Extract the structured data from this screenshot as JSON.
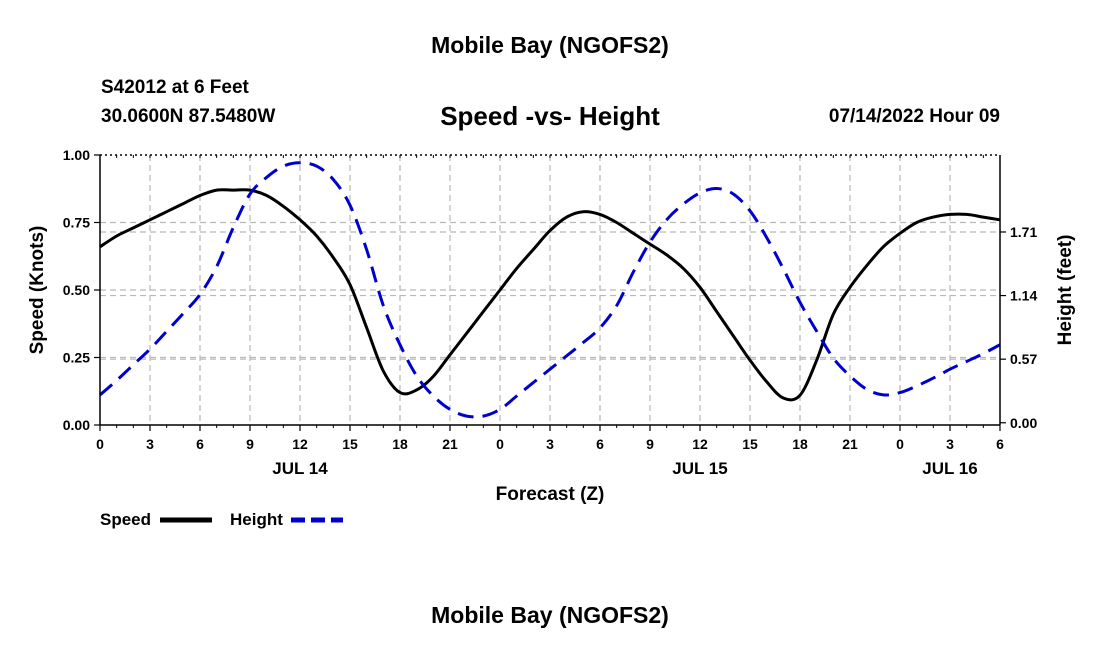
{
  "header": {
    "title": "Mobile Bay (NGOFS2)",
    "station": "S42012 at 6 Feet",
    "coords": "30.0600N  87.5480W",
    "subtitle": "Speed -vs- Height",
    "timestamp": "07/14/2022 Hour 09"
  },
  "footer": {
    "title": "Mobile Bay (NGOFS2)"
  },
  "chart_data": {
    "type": "line",
    "xlabel": "Forecast (Z)",
    "ylabel": "Speed (Knots)",
    "y2label": "Height (feet)",
    "x_range": [
      0,
      54
    ],
    "ylim": [
      0,
      1.0
    ],
    "y2lim": [
      -0.02,
      2.4
    ],
    "grid": true,
    "legend_position": "bottom-left",
    "x_tick_labels": [
      "0",
      "3",
      "6",
      "9",
      "12",
      "15",
      "18",
      "21",
      "0",
      "3",
      "6",
      "9",
      "12",
      "15",
      "18",
      "21",
      "0",
      "3",
      "6"
    ],
    "y_ticks": [
      "0.00",
      "0.25",
      "0.50",
      "0.75",
      "1.00"
    ],
    "y2_ticks": [
      "0.00",
      "0.57",
      "1.14",
      "1.71"
    ],
    "date_labels": [
      {
        "label": "JUL 14",
        "hour": 12
      },
      {
        "label": "JUL 15",
        "hour": 36
      },
      {
        "label": "JUL 16",
        "hour": 51
      }
    ],
    "series": [
      {
        "name": "Speed",
        "axis": "left",
        "color": "#000000",
        "dash": "solid",
        "x": [
          0,
          1,
          2,
          3,
          4,
          5,
          6,
          7,
          8,
          9,
          10,
          11,
          12,
          13,
          14,
          15,
          16,
          17,
          18,
          19,
          20,
          21,
          22,
          23,
          24,
          25,
          26,
          27,
          28,
          29,
          30,
          31,
          32,
          33,
          34,
          35,
          36,
          37,
          38,
          39,
          40,
          41,
          42,
          43,
          44,
          45,
          46,
          47,
          48,
          49,
          50,
          51,
          52,
          53,
          54
        ],
        "values": [
          0.66,
          0.7,
          0.73,
          0.76,
          0.79,
          0.82,
          0.85,
          0.87,
          0.87,
          0.87,
          0.85,
          0.81,
          0.76,
          0.7,
          0.62,
          0.52,
          0.36,
          0.2,
          0.12,
          0.13,
          0.18,
          0.26,
          0.34,
          0.42,
          0.5,
          0.58,
          0.65,
          0.72,
          0.77,
          0.79,
          0.78,
          0.75,
          0.71,
          0.67,
          0.63,
          0.58,
          0.51,
          0.42,
          0.33,
          0.24,
          0.16,
          0.1,
          0.11,
          0.24,
          0.41,
          0.51,
          0.59,
          0.66,
          0.71,
          0.75,
          0.77,
          0.78,
          0.78,
          0.77,
          0.76
        ]
      },
      {
        "name": "Height",
        "axis": "right",
        "color": "#0000cc",
        "dash": "dashed",
        "x": [
          0,
          1,
          2,
          3,
          4,
          5,
          6,
          7,
          8,
          9,
          10,
          11,
          12,
          13,
          14,
          15,
          16,
          17,
          18,
          19,
          20,
          21,
          22,
          23,
          24,
          25,
          26,
          27,
          28,
          29,
          30,
          31,
          32,
          33,
          34,
          35,
          36,
          37,
          38,
          39,
          40,
          41,
          42,
          43,
          44,
          45,
          46,
          47,
          48,
          49,
          50,
          51,
          52,
          53,
          54
        ],
        "values": [
          0.25,
          0.38,
          0.52,
          0.66,
          0.82,
          0.98,
          1.15,
          1.4,
          1.75,
          2.05,
          2.2,
          2.3,
          2.33,
          2.3,
          2.18,
          1.95,
          1.55,
          1.05,
          0.7,
          0.42,
          0.24,
          0.12,
          0.06,
          0.06,
          0.12,
          0.24,
          0.36,
          0.48,
          0.6,
          0.72,
          0.85,
          1.05,
          1.35,
          1.62,
          1.82,
          1.96,
          2.06,
          2.1,
          2.05,
          1.9,
          1.66,
          1.38,
          1.08,
          0.82,
          0.58,
          0.42,
          0.3,
          0.25,
          0.27,
          0.33,
          0.4,
          0.48,
          0.55,
          0.62,
          0.7
        ]
      }
    ]
  }
}
